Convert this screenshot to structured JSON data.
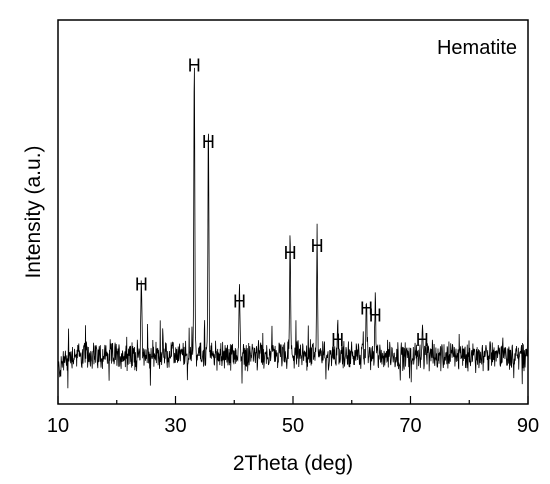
{
  "chart_data": {
    "type": "line",
    "title": "",
    "legend_label": "Hematite",
    "xlabel": "2Theta (deg)",
    "ylabel": "Intensity (a.u.)",
    "xlim": [
      10,
      90
    ],
    "ylim": [
      0,
      100
    ],
    "x_ticks": [
      10,
      30,
      50,
      70,
      90
    ],
    "y_ticks_shown": false,
    "grid": false,
    "line_color": "#000000",
    "baseline_intensity": 10,
    "noise_amplitude": 3.2,
    "peaks": [
      {
        "two_theta": 24.2,
        "intensity": 24,
        "label": "H"
      },
      {
        "two_theta": 33.2,
        "intensity": 87,
        "label": "H"
      },
      {
        "two_theta": 35.6,
        "intensity": 65,
        "label": "H"
      },
      {
        "two_theta": 40.9,
        "intensity": 19,
        "label": "H"
      },
      {
        "two_theta": 49.5,
        "intensity": 33,
        "label": "H"
      },
      {
        "two_theta": 54.1,
        "intensity": 35,
        "label": "H"
      },
      {
        "two_theta": 57.6,
        "intensity": 8,
        "label": "H"
      },
      {
        "two_theta": 62.5,
        "intensity": 17,
        "label": "H"
      },
      {
        "two_theta": 64.0,
        "intensity": 15,
        "label": "H"
      },
      {
        "two_theta": 72.0,
        "intensity": 8,
        "label": "H"
      }
    ]
  }
}
